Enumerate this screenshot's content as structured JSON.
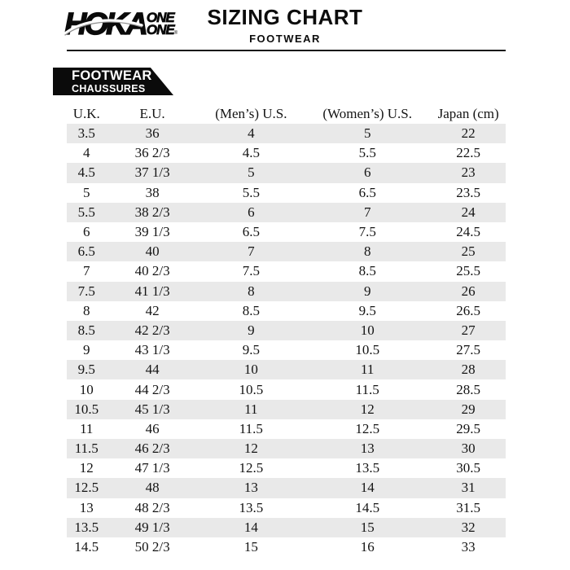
{
  "header": {
    "logo": {
      "brand": "HOKA",
      "one_top": "ONE",
      "one_bottom": "ONE",
      "registered_mark": "®"
    },
    "title": "SIZING CHART",
    "subtitle": "FOOTWEAR"
  },
  "banner": {
    "line1": "FOOTWEAR",
    "line2": "CHAUSSURES"
  },
  "table": {
    "columns": [
      "U.K.",
      "E.U.",
      "(Men’s) U.S.",
      "(Women’s) U.S.",
      "Japan (cm)"
    ],
    "rows": [
      [
        "3.5",
        "36",
        "4",
        "5",
        "22"
      ],
      [
        "4",
        "36 2/3",
        "4.5",
        "5.5",
        "22.5"
      ],
      [
        "4.5",
        "37 1/3",
        "5",
        "6",
        "23"
      ],
      [
        "5",
        "38",
        "5.5",
        "6.5",
        "23.5"
      ],
      [
        "5.5",
        "38 2/3",
        "6",
        "7",
        "24"
      ],
      [
        "6",
        "39 1/3",
        "6.5",
        "7.5",
        "24.5"
      ],
      [
        "6.5",
        "40",
        "7",
        "8",
        "25"
      ],
      [
        "7",
        "40 2/3",
        "7.5",
        "8.5",
        "25.5"
      ],
      [
        "7.5",
        "41 1/3",
        "8",
        "9",
        "26"
      ],
      [
        "8",
        "42",
        "8.5",
        "9.5",
        "26.5"
      ],
      [
        "8.5",
        "42 2/3",
        "9",
        "10",
        "27"
      ],
      [
        "9",
        "43 1/3",
        "9.5",
        "10.5",
        "27.5"
      ],
      [
        "9.5",
        "44",
        "10",
        "11",
        "28"
      ],
      [
        "10",
        "44 2/3",
        "10.5",
        "11.5",
        "28.5"
      ],
      [
        "10.5",
        "45 1/3",
        "11",
        "12",
        "29"
      ],
      [
        "11",
        "46",
        "11.5",
        "12.5",
        "29.5"
      ],
      [
        "11.5",
        "46 2/3",
        "12",
        "13",
        "30"
      ],
      [
        "12",
        "47 1/3",
        "12.5",
        "13.5",
        "30.5"
      ],
      [
        "12.5",
        "48",
        "13",
        "14",
        "31"
      ],
      [
        "13",
        "48 2/3",
        "13.5",
        "14.5",
        "31.5"
      ],
      [
        "13.5",
        "49 1/3",
        "14",
        "15",
        "32"
      ],
      [
        "14.5",
        "50 2/3",
        "15",
        "16",
        "33"
      ]
    ]
  },
  "colors": {
    "banner_bg": "#0b0b0b",
    "row_alt": "#e9e9e9",
    "text": "#141414"
  }
}
